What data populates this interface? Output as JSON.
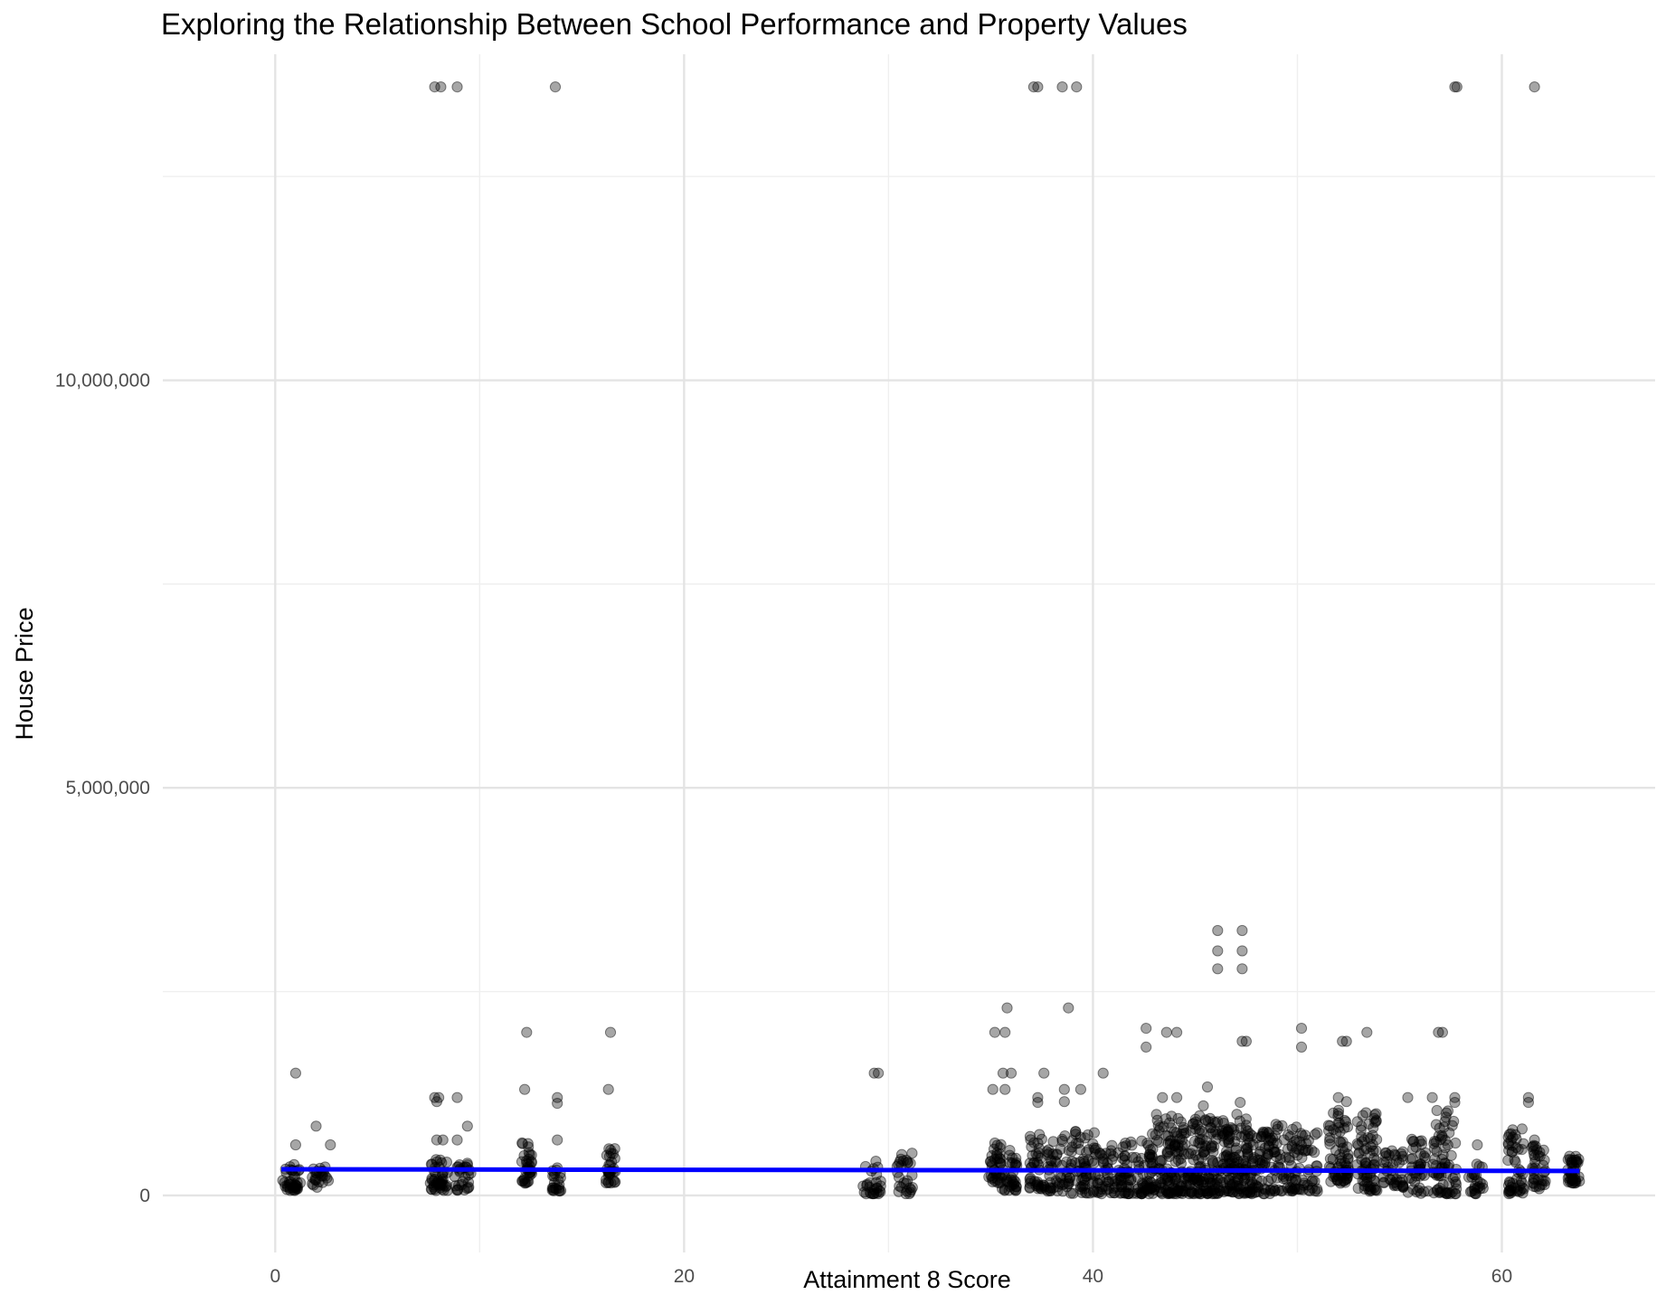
{
  "chart_data": {
    "type": "scatter",
    "title": "Exploring the Relationship Between School Performance and Property Values",
    "xlabel": "Attainment 8 Score",
    "ylabel": "House Price",
    "xlim": [
      -5.5,
      67.5
    ],
    "ylim": [
      -700000,
      14000000
    ],
    "x_ticks": [
      {
        "value": 0,
        "label": "0"
      },
      {
        "value": 20,
        "label": "20"
      },
      {
        "value": 40,
        "label": "40"
      },
      {
        "value": 60,
        "label": "60"
      }
    ],
    "y_ticks": [
      {
        "value": 0,
        "label": "0"
      },
      {
        "value": 5000000,
        "label": "5,000,000"
      },
      {
        "value": 10000000,
        "label": "10,000,000"
      }
    ],
    "grid": true,
    "point_color": "#000000",
    "point_opacity": 0.35,
    "trend_color": "#0000ff",
    "trend_line": {
      "x": [
        0.3,
        63.8
      ],
      "y": [
        320000,
        300000
      ]
    },
    "outliers": [
      {
        "x": 7.8,
        "y": 13600000
      },
      {
        "x": 8.1,
        "y": 13600000
      },
      {
        "x": 8.9,
        "y": 13600000
      },
      {
        "x": 13.7,
        "y": 13600000
      },
      {
        "x": 37.1,
        "y": 13600000
      },
      {
        "x": 37.3,
        "y": 13600000
      },
      {
        "x": 38.5,
        "y": 13600000
      },
      {
        "x": 39.2,
        "y": 13600000
      },
      {
        "x": 57.7,
        "y": 13600000
      },
      {
        "x": 57.8,
        "y": 13600000
      },
      {
        "x": 61.6,
        "y": 13600000
      },
      {
        "x": 46.1,
        "y": 3250000
      },
      {
        "x": 47.3,
        "y": 3250000
      },
      {
        "x": 46.1,
        "y": 3000000
      },
      {
        "x": 47.3,
        "y": 3000000
      },
      {
        "x": 46.1,
        "y": 2780000
      },
      {
        "x": 47.3,
        "y": 2780000
      },
      {
        "x": 35.8,
        "y": 2300000
      },
      {
        "x": 38.8,
        "y": 2300000
      },
      {
        "x": 42.6,
        "y": 2050000
      },
      {
        "x": 50.2,
        "y": 2050000
      },
      {
        "x": 12.3,
        "y": 2000000
      },
      {
        "x": 16.4,
        "y": 2000000
      },
      {
        "x": 35.2,
        "y": 2000000
      },
      {
        "x": 35.7,
        "y": 2000000
      },
      {
        "x": 43.6,
        "y": 2000000
      },
      {
        "x": 44.1,
        "y": 2000000
      },
      {
        "x": 53.4,
        "y": 2000000
      },
      {
        "x": 56.9,
        "y": 2000000
      },
      {
        "x": 57.1,
        "y": 2000000
      },
      {
        "x": 42.6,
        "y": 1820000
      },
      {
        "x": 50.2,
        "y": 1820000
      },
      {
        "x": 47.3,
        "y": 1890000
      },
      {
        "x": 47.5,
        "y": 1890000
      },
      {
        "x": 52.2,
        "y": 1890000
      },
      {
        "x": 52.4,
        "y": 1890000
      },
      {
        "x": 1.0,
        "y": 1500000
      },
      {
        "x": 29.3,
        "y": 1500000
      },
      {
        "x": 29.5,
        "y": 1500000
      },
      {
        "x": 35.6,
        "y": 1500000
      },
      {
        "x": 36.0,
        "y": 1500000
      },
      {
        "x": 37.6,
        "y": 1500000
      },
      {
        "x": 40.5,
        "y": 1500000
      },
      {
        "x": 12.2,
        "y": 1300000
      },
      {
        "x": 16.3,
        "y": 1300000
      },
      {
        "x": 35.1,
        "y": 1300000
      },
      {
        "x": 35.7,
        "y": 1300000
      },
      {
        "x": 38.6,
        "y": 1300000
      },
      {
        "x": 39.4,
        "y": 1300000
      },
      {
        "x": 45.6,
        "y": 1330000
      },
      {
        "x": 7.8,
        "y": 1200000
      },
      {
        "x": 8.0,
        "y": 1200000
      },
      {
        "x": 8.9,
        "y": 1200000
      },
      {
        "x": 13.8,
        "y": 1200000
      },
      {
        "x": 37.3,
        "y": 1200000
      },
      {
        "x": 43.4,
        "y": 1200000
      },
      {
        "x": 44.1,
        "y": 1200000
      },
      {
        "x": 52.0,
        "y": 1200000
      },
      {
        "x": 55.4,
        "y": 1200000
      },
      {
        "x": 56.6,
        "y": 1200000
      },
      {
        "x": 57.7,
        "y": 1200000
      },
      {
        "x": 61.3,
        "y": 1200000
      },
      {
        "x": 7.9,
        "y": 1150000
      },
      {
        "x": 13.8,
        "y": 1130000
      },
      {
        "x": 37.3,
        "y": 1140000
      },
      {
        "x": 38.6,
        "y": 1150000
      },
      {
        "x": 57.7,
        "y": 1140000
      },
      {
        "x": 61.3,
        "y": 1140000
      },
      {
        "x": 45.4,
        "y": 1100000
      },
      {
        "x": 47.2,
        "y": 1140000
      },
      {
        "x": 52.4,
        "y": 1150000
      },
      {
        "x": 2.0,
        "y": 850000
      },
      {
        "x": 9.4,
        "y": 850000
      },
      {
        "x": 45.1,
        "y": 860000
      },
      {
        "x": 47.5,
        "y": 860000
      },
      {
        "x": 7.9,
        "y": 680000
      },
      {
        "x": 8.2,
        "y": 680000
      },
      {
        "x": 8.9,
        "y": 680000
      },
      {
        "x": 13.8,
        "y": 680000
      },
      {
        "x": 1.0,
        "y": 620000
      },
      {
        "x": 2.7,
        "y": 620000
      },
      {
        "x": 58.8,
        "y": 620000
      },
      {
        "x": 61.6,
        "y": 680000
      }
    ],
    "clusters": [
      {
        "x": 0.8,
        "w": 0.9,
        "lo": 60000,
        "hi": 380000,
        "n": 40
      },
      {
        "x": 2.2,
        "w": 0.8,
        "lo": 100000,
        "hi": 350000,
        "n": 24
      },
      {
        "x": 8.0,
        "w": 0.9,
        "lo": 60000,
        "hi": 450000,
        "n": 45
      },
      {
        "x": 9.2,
        "w": 0.9,
        "lo": 60000,
        "hi": 400000,
        "n": 28
      },
      {
        "x": 12.3,
        "w": 0.5,
        "lo": 150000,
        "hi": 650000,
        "n": 36
      },
      {
        "x": 13.8,
        "w": 0.5,
        "lo": 50000,
        "hi": 380000,
        "n": 22
      },
      {
        "x": 16.4,
        "w": 0.5,
        "lo": 150000,
        "hi": 600000,
        "n": 30
      },
      {
        "x": 29.2,
        "w": 0.9,
        "lo": 20000,
        "hi": 470000,
        "n": 28
      },
      {
        "x": 30.8,
        "w": 0.9,
        "lo": 20000,
        "hi": 520000,
        "n": 28
      },
      {
        "x": 35.2,
        "w": 0.6,
        "lo": 150000,
        "hi": 650000,
        "n": 36
      },
      {
        "x": 35.9,
        "w": 0.8,
        "lo": 60000,
        "hi": 580000,
        "n": 36
      },
      {
        "x": 37.3,
        "w": 0.8,
        "lo": 80000,
        "hi": 820000,
        "n": 40
      },
      {
        "x": 38.3,
        "w": 1.2,
        "lo": 50000,
        "hi": 780000,
        "n": 50
      },
      {
        "x": 39.5,
        "w": 1.2,
        "lo": 20000,
        "hi": 820000,
        "n": 60
      },
      {
        "x": 40.8,
        "w": 1.4,
        "lo": 20000,
        "hi": 650000,
        "n": 60
      },
      {
        "x": 42.2,
        "w": 1.4,
        "lo": 20000,
        "hi": 700000,
        "n": 70
      },
      {
        "x": 43.4,
        "w": 1.3,
        "lo": 20000,
        "hi": 1000000,
        "n": 90
      },
      {
        "x": 44.6,
        "w": 1.3,
        "lo": 20000,
        "hi": 950000,
        "n": 90
      },
      {
        "x": 45.8,
        "w": 1.3,
        "lo": 20000,
        "hi": 1000000,
        "n": 100
      },
      {
        "x": 47.1,
        "w": 1.2,
        "lo": 20000,
        "hi": 1000000,
        "n": 110
      },
      {
        "x": 48.3,
        "w": 1.2,
        "lo": 20000,
        "hi": 780000,
        "n": 70
      },
      {
        "x": 49.4,
        "w": 1.2,
        "lo": 50000,
        "hi": 900000,
        "n": 60
      },
      {
        "x": 50.5,
        "w": 1.0,
        "lo": 50000,
        "hi": 780000,
        "n": 40
      },
      {
        "x": 52.0,
        "w": 1.0,
        "lo": 150000,
        "hi": 1050000,
        "n": 70
      },
      {
        "x": 53.4,
        "w": 1.0,
        "lo": 50000,
        "hi": 1050000,
        "n": 70
      },
      {
        "x": 54.7,
        "w": 1.0,
        "lo": 100000,
        "hi": 580000,
        "n": 40
      },
      {
        "x": 55.9,
        "w": 1.0,
        "lo": 20000,
        "hi": 700000,
        "n": 40
      },
      {
        "x": 57.2,
        "w": 1.2,
        "lo": 20000,
        "hi": 1050000,
        "n": 70
      },
      {
        "x": 58.7,
        "w": 0.8,
        "lo": 20000,
        "hi": 400000,
        "n": 24
      },
      {
        "x": 60.7,
        "w": 0.8,
        "lo": 20000,
        "hi": 820000,
        "n": 50
      },
      {
        "x": 61.8,
        "w": 0.7,
        "lo": 80000,
        "hi": 650000,
        "n": 36
      },
      {
        "x": 63.5,
        "w": 0.6,
        "lo": 150000,
        "hi": 500000,
        "n": 40
      }
    ]
  }
}
